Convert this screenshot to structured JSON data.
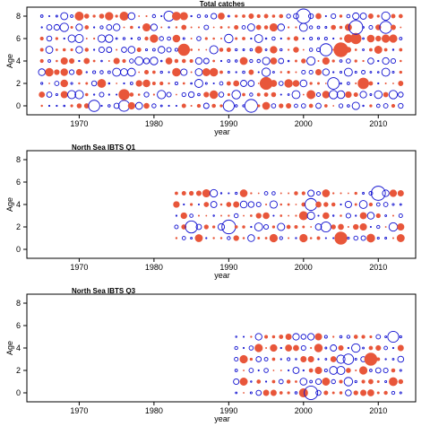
{
  "colors": {
    "positive": "#e8563a",
    "negative": "#1010d0",
    "axis": "#000000"
  },
  "chart_data": [
    {
      "type": "scatter",
      "title": "Total catches",
      "xlabel": "year",
      "ylabel": "Age",
      "xlim": [
        1963,
        2015
      ],
      "ylim": [
        -0.8,
        8.8
      ],
      "xticks": [
        1970,
        1980,
        1990,
        2000,
        2010
      ],
      "yticks": [
        0,
        2,
        4,
        6,
        8
      ],
      "years": [
        1965,
        2013
      ],
      "ages": [
        0,
        8
      ],
      "encoding": "bubble residuals: red filled = positive, blue open = negative",
      "seed": 11
    },
    {
      "type": "scatter",
      "title": "North Sea IBTS Q1",
      "xlabel": "year",
      "ylabel": "Age",
      "xlim": [
        1963,
        2015
      ],
      "ylim": [
        -0.8,
        8.8
      ],
      "xticks": [
        1970,
        1980,
        1990,
        2000,
        2010
      ],
      "yticks": [
        0,
        2,
        4,
        6,
        8
      ],
      "years": [
        1983,
        2013
      ],
      "ages": [
        1,
        5
      ],
      "encoding": "bubble residuals: red filled = positive, blue open = negative",
      "seed": 23
    },
    {
      "type": "scatter",
      "title": "North Sea IBTS Q3",
      "xlabel": "year",
      "ylabel": "Age",
      "xlim": [
        1963,
        2015
      ],
      "ylim": [
        -0.8,
        8.8
      ],
      "xticks": [
        1970,
        1980,
        1990,
        2000,
        2010
      ],
      "yticks": [
        0,
        2,
        4,
        6,
        8
      ],
      "years": [
        1991,
        2013
      ],
      "ages": [
        0,
        5
      ],
      "encoding": "bubble residuals: red filled = positive, blue open = negative",
      "seed": 37
    }
  ]
}
